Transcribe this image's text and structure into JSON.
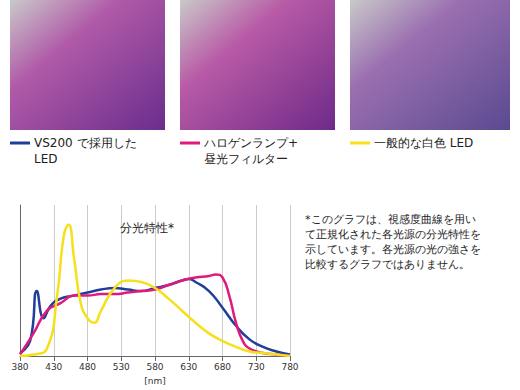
{
  "chart_data": {
    "type": "line",
    "title": "分光特性*",
    "x_label": "[nm]",
    "xlim": [
      380,
      780
    ],
    "xticks": [
      380,
      430,
      480,
      530,
      580,
      630,
      680,
      730,
      780
    ],
    "ylim": [
      0,
      1
    ],
    "grid": "x",
    "tick_labels": "x",
    "annotation": "*このグラフは、視感度曲線を用い\nて正規化された各光源の分光特性を\n示しています。各光源の光の強さを\n比較するグラフではありません。",
    "series": [
      {
        "name": "VS200 で採用した\nLED",
        "color": "#1f3f99",
        "line_style": "solid",
        "x": [
          380,
          395,
          405,
          415,
          425,
          440,
          460,
          480,
          500,
          520,
          540,
          560,
          580,
          600,
          620,
          630,
          640,
          660,
          680,
          700,
          720,
          740,
          760,
          780
        ],
        "values": [
          0.02,
          0.1,
          0.43,
          0.25,
          0.33,
          0.38,
          0.4,
          0.42,
          0.44,
          0.45,
          0.44,
          0.43,
          0.45,
          0.47,
          0.5,
          0.51,
          0.49,
          0.43,
          0.32,
          0.2,
          0.11,
          0.06,
          0.03,
          0.01
        ]
      },
      {
        "name": "ハロゲンランプ+\n昼光フィルター",
        "color": "#e0197d",
        "line_style": "solid",
        "x": [
          380,
          400,
          420,
          440,
          460,
          480,
          500,
          520,
          540,
          560,
          580,
          600,
          620,
          640,
          660,
          670,
          680,
          690,
          700,
          710,
          720,
          740,
          760,
          780
        ],
        "values": [
          0.01,
          0.15,
          0.3,
          0.35,
          0.4,
          0.4,
          0.41,
          0.41,
          0.42,
          0.43,
          0.44,
          0.47,
          0.5,
          0.52,
          0.53,
          0.54,
          0.52,
          0.4,
          0.22,
          0.1,
          0.05,
          0.02,
          0.01,
          0.0
        ]
      },
      {
        "name": "一般的な白色 LED",
        "color": "#f5e01a",
        "line_style": "solid",
        "x": [
          380,
          400,
          420,
          435,
          445,
          452,
          460,
          470,
          480,
          490,
          500,
          520,
          540,
          560,
          580,
          600,
          620,
          640,
          660,
          680,
          700,
          720,
          740,
          760,
          780
        ],
        "values": [
          0.0,
          0.01,
          0.05,
          0.4,
          0.8,
          0.87,
          0.65,
          0.35,
          0.25,
          0.22,
          0.3,
          0.45,
          0.5,
          0.49,
          0.45,
          0.38,
          0.3,
          0.22,
          0.15,
          0.1,
          0.06,
          0.03,
          0.02,
          0.01,
          0.0
        ]
      }
    ]
  }
}
